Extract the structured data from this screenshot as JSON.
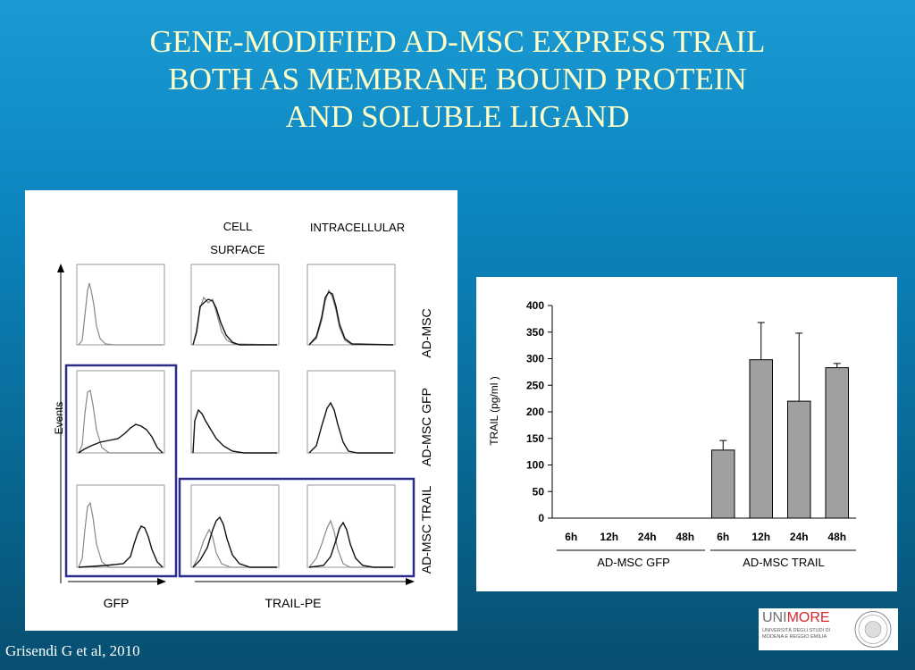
{
  "title": {
    "line1": "GENE-MODIFIED AD-MSC EXPRESS TRAIL",
    "line2": "BOTH AS  MEMBRANE BOUND PROTEIN",
    "line3": "AND  SOLUBLE LIGAND"
  },
  "flow_figure": {
    "col_header_cell": "CELL",
    "col_header_surface": "SURFACE",
    "col_header_intracellular": "INTRACELLULAR",
    "row_labels": [
      "AD-MSC",
      "AD-MSC GFP",
      "AD-MSC TRAIL"
    ],
    "y_axis_label": "Events",
    "x_label_gfp": "GFP",
    "x_label_trail": "TRAIL-PE"
  },
  "chart_data": {
    "type": "bar",
    "ylabel": "TRAIL  (pg/ml )",
    "ylim": [
      0,
      400
    ],
    "yticks": [
      "400",
      "350",
      "300",
      "250",
      "200",
      "150",
      "100",
      "50",
      "0"
    ],
    "categories": [
      "6h",
      "12h",
      "24h",
      "48h",
      "6h",
      "12h",
      "24h",
      "48h"
    ],
    "values": [
      0,
      0,
      0,
      0,
      128,
      298,
      220,
      283
    ],
    "errors": [
      0,
      0,
      0,
      0,
      18,
      70,
      128,
      8
    ],
    "groups": [
      "AD-MSC GFP",
      "AD-MSC TRAIL"
    ],
    "bar_color": "#a0a0a0"
  },
  "citation": "Grisendi G et al, 2010",
  "logo": {
    "uni": "UNI",
    "more": "MORE",
    "subtitle": "UNIVERSITÀ DEGLI STUDI DI MODENA E REGGIO EMILIA"
  }
}
